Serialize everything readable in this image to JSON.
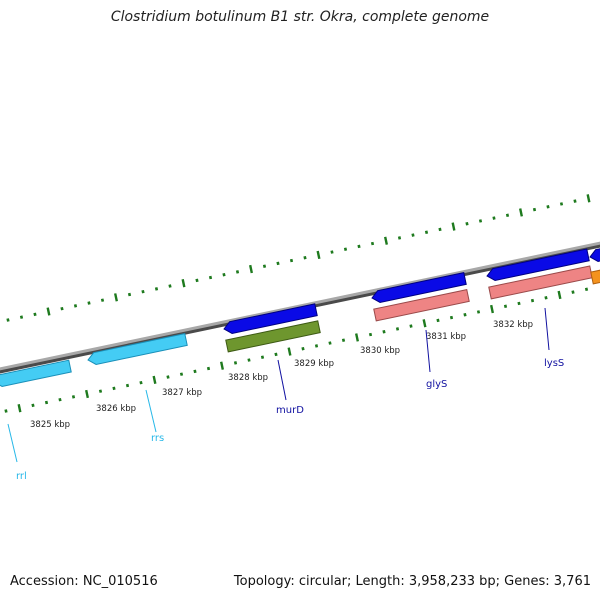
{
  "title": "Clostridium botulinum B1 str. Okra, complete genome",
  "footer": {
    "accession": "Accession: NC_010516",
    "summary": "Topology: circular; Length: 3,958,233 bp; Genes: 3,761"
  },
  "ruler_labels": [
    "3825 kbp",
    "3826 kbp",
    "3827 kbp",
    "3828 kbp",
    "3829 kbp",
    "3830 kbp",
    "3831 kbp",
    "3832 kbp"
  ],
  "gene_labels": [
    "rrl",
    "rrs",
    "murD",
    "glyS",
    "lysS"
  ],
  "colors": {
    "backbone": "#8c8c8c",
    "ticks": "#1e7a1e",
    "rrna": "#44ccf4",
    "forward_gene": "#0a0ae6",
    "murD": "#6e962e",
    "glyS": "#ee8484",
    "lysS": "#ee8484",
    "extra": "#f4921e",
    "label_blue": "#1010a0",
    "label_cyan": "#28b8e8"
  }
}
